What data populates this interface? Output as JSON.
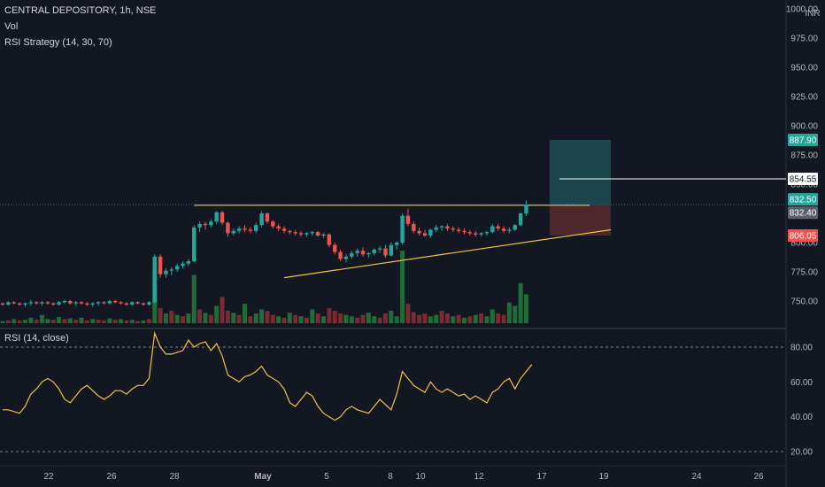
{
  "legend": {
    "symbol": "CENTRAL DEPOSITORY, 1h, NSE",
    "vol": "Vol",
    "strategy": "RSI Strategy (14, 30, 70)",
    "rsi": "RSI (14, close)"
  },
  "currency": "INR",
  "colors": {
    "background": "#131722",
    "up": "#26a69a",
    "down": "#ef5350",
    "vol_up": "#1f6b3a",
    "vol_down": "#7a2a32",
    "trendline": "#f0c24a",
    "rsi_line": "#f0c24a",
    "target_zone": "#1f4f55",
    "stop_zone": "#5a2a30",
    "tag_green": "#26a69a",
    "tag_red": "#ef5350",
    "tag_gray": "#5d606b",
    "tag_white": "#ffffff"
  },
  "chart_data": [
    {
      "type": "candlestick",
      "title": "CENTRAL DEPOSITORY, 1h, NSE",
      "ylim": [
        740,
        1000
      ],
      "yticks": [
        "1000.00",
        "975.00",
        "950.00",
        "925.00",
        "900.00",
        "875.00",
        "850.00",
        "825.00",
        "800.00",
        "775.00",
        "750.00"
      ],
      "xticks": [
        "22",
        "26",
        "28",
        "May",
        "5",
        "8",
        "10",
        "12",
        "17",
        "19",
        "24",
        "26"
      ],
      "xlim": [
        0,
        105
      ],
      "candles": [
        [
          748,
          749,
          746,
          747
        ],
        [
          747,
          750,
          746,
          749
        ],
        [
          749,
          750,
          747,
          748
        ],
        [
          748,
          749,
          746,
          747
        ],
        [
          747,
          749,
          745,
          748
        ],
        [
          748,
          751,
          746,
          749
        ],
        [
          749,
          750,
          747,
          748
        ],
        [
          748,
          750,
          746,
          749
        ],
        [
          749,
          750,
          747,
          748
        ],
        [
          748,
          749,
          746,
          747
        ],
        [
          747,
          750,
          746,
          749
        ],
        [
          749,
          751,
          748,
          750
        ],
        [
          750,
          751,
          747,
          748
        ],
        [
          748,
          750,
          746,
          749
        ],
        [
          749,
          750,
          747,
          748
        ],
        [
          748,
          749,
          746,
          747
        ],
        [
          747,
          749,
          745,
          748
        ],
        [
          748,
          750,
          746,
          749
        ],
        [
          749,
          750,
          747,
          748
        ],
        [
          748,
          751,
          747,
          750
        ],
        [
          750,
          751,
          748,
          749
        ],
        [
          749,
          750,
          747,
          748
        ],
        [
          748,
          749,
          746,
          747
        ],
        [
          747,
          750,
          746,
          749
        ],
        [
          749,
          750,
          747,
          748
        ],
        [
          748,
          749,
          746,
          747
        ],
        [
          747,
          750,
          746,
          749
        ],
        [
          749,
          790,
          748,
          788
        ],
        [
          788,
          790,
          770,
          773
        ],
        [
          773,
          778,
          770,
          776
        ],
        [
          776,
          779,
          772,
          777
        ],
        [
          777,
          782,
          775,
          780
        ],
        [
          780,
          784,
          778,
          782
        ],
        [
          782,
          786,
          780,
          784
        ],
        [
          784,
          815,
          783,
          813
        ],
        [
          813,
          818,
          809,
          816
        ],
        [
          816,
          818,
          811,
          815
        ],
        [
          815,
          820,
          813,
          818
        ],
        [
          818,
          827,
          816,
          826
        ],
        [
          826,
          827,
          815,
          817
        ],
        [
          817,
          818,
          805,
          808
        ],
        [
          808,
          812,
          806,
          810
        ],
        [
          810,
          814,
          808,
          812
        ],
        [
          812,
          815,
          809,
          811
        ],
        [
          811,
          813,
          808,
          810
        ],
        [
          810,
          817,
          808,
          815
        ],
        [
          815,
          827,
          813,
          825
        ],
        [
          825,
          826,
          816,
          818
        ],
        [
          818,
          819,
          812,
          814
        ],
        [
          814,
          816,
          810,
          812
        ],
        [
          812,
          814,
          808,
          810
        ],
        [
          810,
          811,
          807,
          809
        ],
        [
          809,
          811,
          806,
          808
        ],
        [
          808,
          810,
          805,
          807
        ],
        [
          807,
          809,
          805,
          808
        ],
        [
          808,
          810,
          806,
          809
        ],
        [
          809,
          810,
          805,
          806
        ],
        [
          806,
          808,
          804,
          807
        ],
        [
          807,
          808,
          796,
          798
        ],
        [
          798,
          800,
          790,
          792
        ],
        [
          792,
          794,
          784,
          786
        ],
        [
          786,
          790,
          783,
          788
        ],
        [
          788,
          793,
          786,
          791
        ],
        [
          791,
          795,
          788,
          793
        ],
        [
          793,
          796,
          788,
          790
        ],
        [
          790,
          792,
          787,
          791
        ],
        [
          791,
          795,
          789,
          794
        ],
        [
          794,
          797,
          791,
          795
        ],
        [
          795,
          798,
          787,
          789
        ],
        [
          789,
          800,
          788,
          798
        ],
        [
          798,
          801,
          794,
          800
        ],
        [
          800,
          825,
          798,
          823
        ],
        [
          823,
          829,
          814,
          816
        ],
        [
          816,
          818,
          808,
          810
        ],
        [
          810,
          813,
          806,
          808
        ],
        [
          808,
          811,
          805,
          806
        ],
        [
          806,
          812,
          804,
          811
        ],
        [
          811,
          815,
          809,
          813
        ],
        [
          813,
          815,
          810,
          814
        ],
        [
          814,
          816,
          810,
          812
        ],
        [
          812,
          814,
          809,
          811
        ],
        [
          811,
          813,
          808,
          810
        ],
        [
          810,
          812,
          807,
          809
        ],
        [
          809,
          811,
          806,
          808
        ],
        [
          808,
          810,
          805,
          807
        ],
        [
          807,
          809,
          805,
          808
        ],
        [
          808,
          810,
          806,
          809
        ],
        [
          809,
          816,
          808,
          814
        ],
        [
          814,
          816,
          810,
          812
        ],
        [
          812,
          814,
          808,
          810
        ],
        [
          810,
          813,
          808,
          811
        ],
        [
          811,
          816,
          810,
          815
        ],
        [
          815,
          826,
          814,
          825
        ],
        [
          825,
          836,
          823,
          832.4
        ]
      ],
      "volumes": [
        [
          3,
          1
        ],
        [
          4,
          0
        ],
        [
          6,
          1
        ],
        [
          4,
          0
        ],
        [
          5,
          1
        ],
        [
          8,
          1
        ],
        [
          5,
          0
        ],
        [
          12,
          1
        ],
        [
          6,
          1
        ],
        [
          5,
          0
        ],
        [
          9,
          1
        ],
        [
          6,
          0
        ],
        [
          7,
          1
        ],
        [
          5,
          0
        ],
        [
          8,
          1
        ],
        [
          4,
          0
        ],
        [
          6,
          1
        ],
        [
          5,
          0
        ],
        [
          4,
          0
        ],
        [
          7,
          1
        ],
        [
          5,
          0
        ],
        [
          6,
          1
        ],
        [
          4,
          0
        ],
        [
          5,
          1
        ],
        [
          3,
          0
        ],
        [
          4,
          1
        ],
        [
          6,
          0
        ],
        [
          78,
          1
        ],
        [
          22,
          0
        ],
        [
          14,
          1
        ],
        [
          18,
          0
        ],
        [
          12,
          1
        ],
        [
          10,
          0
        ],
        [
          14,
          1
        ],
        [
          70,
          1
        ],
        [
          20,
          0
        ],
        [
          15,
          1
        ],
        [
          12,
          0
        ],
        [
          25,
          1
        ],
        [
          38,
          0
        ],
        [
          18,
          0
        ],
        [
          15,
          1
        ],
        [
          12,
          0
        ],
        [
          28,
          1
        ],
        [
          10,
          0
        ],
        [
          14,
          1
        ],
        [
          20,
          1
        ],
        [
          18,
          0
        ],
        [
          12,
          0
        ],
        [
          10,
          1
        ],
        [
          8,
          0
        ],
        [
          15,
          1
        ],
        [
          12,
          0
        ],
        [
          10,
          1
        ],
        [
          8,
          0
        ],
        [
          20,
          1
        ],
        [
          14,
          0
        ],
        [
          10,
          1
        ],
        [
          22,
          0
        ],
        [
          18,
          0
        ],
        [
          14,
          0
        ],
        [
          12,
          1
        ],
        [
          10,
          1
        ],
        [
          8,
          0
        ],
        [
          12,
          0
        ],
        [
          15,
          1
        ],
        [
          10,
          1
        ],
        [
          8,
          0
        ],
        [
          14,
          0
        ],
        [
          18,
          1
        ],
        [
          10,
          1
        ],
        [
          105,
          1
        ],
        [
          28,
          0
        ],
        [
          16,
          0
        ],
        [
          12,
          0
        ],
        [
          14,
          0
        ],
        [
          10,
          1
        ],
        [
          12,
          1
        ],
        [
          18,
          0
        ],
        [
          14,
          0
        ],
        [
          10,
          1
        ],
        [
          12,
          0
        ],
        [
          8,
          1
        ],
        [
          10,
          0
        ],
        [
          12,
          1
        ],
        [
          14,
          0
        ],
        [
          10,
          1
        ],
        [
          20,
          1
        ],
        [
          14,
          0
        ],
        [
          12,
          0
        ],
        [
          30,
          1
        ],
        [
          25,
          1
        ],
        [
          58,
          1
        ],
        [
          42,
          1
        ]
      ],
      "trendlines": [
        {
          "from": [
            34,
            832
          ],
          "to": [
            103,
            832
          ]
        },
        {
          "from": [
            50,
            770
          ],
          "to": [
            106,
            811
          ]
        }
      ],
      "position": {
        "entry": 832.5,
        "target": 887.9,
        "stop": 806.05,
        "x_start": 94,
        "x_end": 106
      },
      "horizontal_line": {
        "value": 854.55,
        "x_start": 97
      },
      "price_tags": [
        "887.90",
        "854.55",
        "832.50",
        "832.40",
        "806.05"
      ]
    },
    {
      "type": "line",
      "title": "RSI (14, close)",
      "ylim": [
        15,
        92
      ],
      "yticks": [
        "80.00",
        "60.00",
        "40.00",
        "20.00"
      ],
      "levels": [
        80,
        20
      ],
      "values": [
        44,
        44,
        43,
        42,
        46,
        53,
        56,
        60,
        62,
        60,
        56,
        50,
        48,
        52,
        56,
        58,
        55,
        52,
        50,
        52,
        55,
        55,
        53,
        56,
        58,
        58,
        62,
        88,
        80,
        76,
        76,
        77,
        78,
        84,
        80,
        82,
        83,
        78,
        82,
        75,
        64,
        62,
        60,
        63,
        64,
        66,
        69,
        64,
        62,
        60,
        56,
        48,
        46,
        50,
        54,
        52,
        46,
        42,
        40,
        38,
        40,
        44,
        46,
        44,
        43,
        42,
        46,
        50,
        47,
        44,
        53,
        66,
        62,
        58,
        56,
        54,
        60,
        56,
        54,
        56,
        54,
        52,
        53,
        50,
        52,
        50,
        48,
        54,
        56,
        60,
        62,
        56,
        62,
        66,
        70
      ]
    }
  ]
}
